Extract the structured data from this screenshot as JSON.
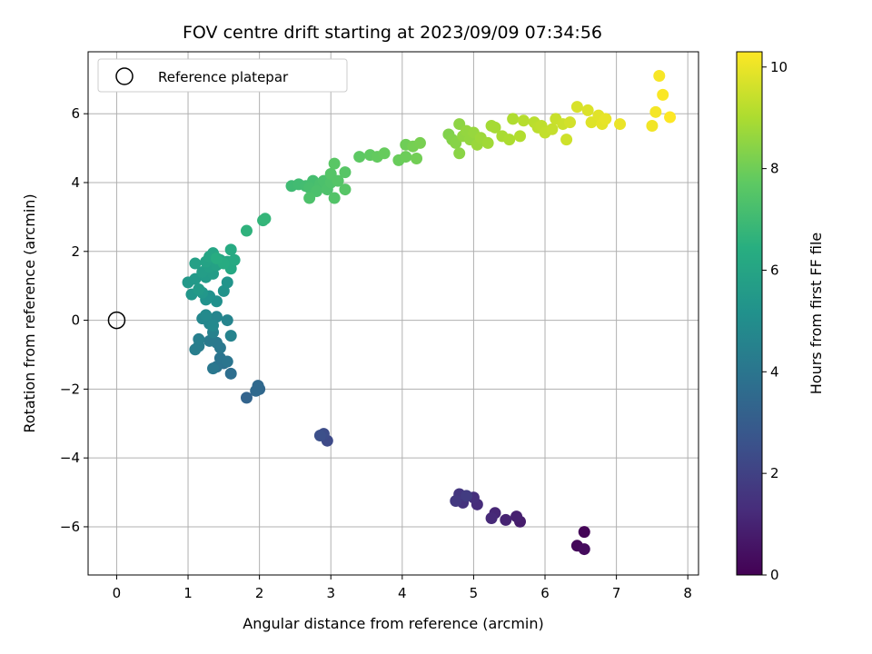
{
  "chart_data": {
    "type": "scatter",
    "title": "FOV centre drift starting at 2023/09/09 07:34:56",
    "xlabel": "Angular distance from reference (arcmin)",
    "ylabel": "Rotation from reference (arcmin)",
    "xlim": [
      -0.4,
      8.15
    ],
    "ylim": [
      -7.4,
      7.8
    ],
    "xticks": [
      0,
      1,
      2,
      3,
      4,
      5,
      6,
      7,
      8
    ],
    "yticks": [
      -6,
      -4,
      -2,
      0,
      2,
      4,
      6
    ],
    "grid": true,
    "legend": {
      "location": "upper-left",
      "label": "Reference platepar"
    },
    "reference_point": {
      "x": 0,
      "y": 0
    },
    "colorbar": {
      "label": "Hours from first FF file",
      "range": [
        0,
        10.3
      ],
      "ticks": [
        0,
        2,
        4,
        6,
        8,
        10
      ],
      "colormap": [
        "#440154",
        "#472d7b",
        "#3b528b",
        "#2c728e",
        "#21918c",
        "#28ae80",
        "#5ec962",
        "#addc30",
        "#fde725"
      ]
    },
    "series": [
      {
        "x_label": "angular distance",
        "y_label": "rotation",
        "c_label": "hours",
        "points": [
          [
            6.55,
            -6.15,
            0.1
          ],
          [
            6.45,
            -6.55,
            0.2
          ],
          [
            6.55,
            -6.65,
            0.3
          ],
          [
            5.65,
            -5.85,
            0.8
          ],
          [
            5.6,
            -5.7,
            0.9
          ],
          [
            5.45,
            -5.8,
            1.0
          ],
          [
            5.3,
            -5.6,
            1.1
          ],
          [
            5.25,
            -5.75,
            1.2
          ],
          [
            5.05,
            -5.35,
            1.3
          ],
          [
            5.0,
            -5.15,
            1.4
          ],
          [
            4.85,
            -5.3,
            1.5
          ],
          [
            4.8,
            -5.05,
            1.6
          ],
          [
            4.75,
            -5.25,
            1.7
          ],
          [
            4.9,
            -5.1,
            1.8
          ],
          [
            2.95,
            -3.5,
            2.3
          ],
          [
            2.9,
            -3.3,
            2.4
          ],
          [
            2.85,
            -3.35,
            2.5
          ],
          [
            1.82,
            -2.25,
            3.3
          ],
          [
            2.0,
            -2.0,
            3.4
          ],
          [
            1.98,
            -1.9,
            3.5
          ],
          [
            1.95,
            -2.05,
            3.5
          ],
          [
            1.6,
            -1.55,
            3.7
          ],
          [
            1.5,
            -1.25,
            3.8
          ],
          [
            1.4,
            -1.35,
            3.9
          ],
          [
            1.45,
            -1.1,
            3.95
          ],
          [
            1.55,
            -1.2,
            4.0
          ],
          [
            1.35,
            -1.4,
            4.05
          ],
          [
            1.45,
            -0.8,
            4.1
          ],
          [
            1.4,
            -0.65,
            4.15
          ],
          [
            1.3,
            -0.6,
            4.2
          ],
          [
            1.15,
            -0.75,
            4.3
          ],
          [
            1.1,
            -0.85,
            4.35
          ],
          [
            1.15,
            -0.55,
            4.4
          ],
          [
            1.35,
            -0.35,
            4.5
          ],
          [
            1.6,
            -0.45,
            4.55
          ],
          [
            1.55,
            0.0,
            4.6
          ],
          [
            1.4,
            0.1,
            4.65
          ],
          [
            1.3,
            -0.1,
            4.7
          ],
          [
            1.2,
            0.05,
            4.75
          ],
          [
            1.35,
            -0.15,
            4.8
          ],
          [
            1.25,
            0.15,
            4.85
          ],
          [
            1.4,
            0.55,
            5.1
          ],
          [
            1.3,
            0.7,
            5.15
          ],
          [
            1.25,
            0.6,
            5.2
          ],
          [
            1.5,
            0.85,
            5.25
          ],
          [
            1.55,
            1.1,
            5.3
          ],
          [
            1.05,
            0.75,
            5.35
          ],
          [
            1.2,
            0.8,
            5.4
          ],
          [
            1.0,
            1.1,
            5.45
          ],
          [
            1.1,
            1.2,
            5.5
          ],
          [
            1.15,
            0.9,
            5.55
          ],
          [
            1.25,
            1.25,
            5.6
          ],
          [
            1.35,
            1.35,
            5.65
          ],
          [
            1.2,
            1.4,
            5.7
          ],
          [
            1.3,
            1.55,
            5.75
          ],
          [
            1.1,
            1.65,
            5.8
          ],
          [
            1.4,
            1.6,
            5.85
          ],
          [
            1.25,
            1.7,
            5.9
          ],
          [
            1.45,
            1.75,
            5.95
          ],
          [
            1.3,
            1.85,
            6.0
          ],
          [
            1.35,
            1.95,
            6.05
          ],
          [
            1.55,
            1.7,
            6.1
          ],
          [
            1.6,
            1.5,
            6.15
          ],
          [
            1.65,
            1.75,
            6.2
          ],
          [
            1.6,
            2.05,
            6.25
          ],
          [
            1.5,
            1.65,
            6.3
          ],
          [
            1.4,
            1.8,
            6.35
          ],
          [
            1.82,
            2.6,
            6.6
          ],
          [
            2.05,
            2.9,
            6.7
          ],
          [
            2.08,
            2.95,
            6.75
          ],
          [
            2.45,
            3.9,
            7.0
          ],
          [
            2.55,
            3.95,
            7.05
          ],
          [
            2.65,
            3.9,
            7.1
          ],
          [
            2.75,
            4.05,
            7.15
          ],
          [
            2.7,
            3.85,
            7.2
          ],
          [
            2.85,
            3.95,
            7.25
          ],
          [
            2.9,
            4.05,
            7.3
          ],
          [
            2.8,
            3.75,
            7.3
          ],
          [
            2.7,
            3.55,
            7.35
          ],
          [
            2.95,
            3.8,
            7.35
          ],
          [
            3.0,
            4.0,
            7.4
          ],
          [
            3.05,
            3.55,
            7.45
          ],
          [
            3.0,
            4.25,
            7.5
          ],
          [
            3.1,
            4.05,
            7.5
          ],
          [
            3.2,
            3.8,
            7.55
          ],
          [
            3.2,
            4.3,
            7.55
          ],
          [
            3.05,
            4.55,
            7.6
          ],
          [
            3.4,
            4.75,
            7.7
          ],
          [
            3.55,
            4.8,
            7.75
          ],
          [
            3.65,
            4.75,
            7.8
          ],
          [
            3.75,
            4.85,
            7.85
          ],
          [
            3.95,
            4.65,
            7.9
          ],
          [
            4.05,
            4.75,
            7.95
          ],
          [
            4.05,
            5.1,
            8.0
          ],
          [
            4.2,
            4.7,
            8.05
          ],
          [
            4.15,
            5.05,
            8.1
          ],
          [
            4.25,
            5.15,
            8.15
          ],
          [
            4.65,
            5.4,
            8.3
          ],
          [
            4.7,
            5.25,
            8.35
          ],
          [
            4.75,
            5.15,
            8.4
          ],
          [
            4.8,
            4.85,
            8.45
          ],
          [
            4.8,
            5.7,
            8.5
          ],
          [
            4.85,
            5.35,
            8.55
          ],
          [
            4.9,
            5.5,
            8.6
          ],
          [
            4.95,
            5.25,
            8.6
          ],
          [
            5.0,
            5.45,
            8.65
          ],
          [
            5.05,
            5.1,
            8.7
          ],
          [
            5.1,
            5.3,
            8.75
          ],
          [
            5.2,
            5.15,
            8.8
          ],
          [
            5.25,
            5.65,
            8.85
          ],
          [
            5.3,
            5.6,
            8.9
          ],
          [
            5.4,
            5.35,
            8.95
          ],
          [
            5.5,
            5.25,
            9.0
          ],
          [
            5.55,
            5.85,
            9.05
          ],
          [
            5.65,
            5.35,
            9.1
          ],
          [
            5.7,
            5.8,
            9.15
          ],
          [
            5.85,
            5.75,
            9.2
          ],
          [
            5.9,
            5.6,
            9.25
          ],
          [
            5.95,
            5.65,
            9.3
          ],
          [
            6.0,
            5.45,
            9.35
          ],
          [
            6.1,
            5.55,
            9.4
          ],
          [
            6.15,
            5.85,
            9.45
          ],
          [
            6.25,
            5.7,
            9.5
          ],
          [
            6.3,
            5.25,
            9.55
          ],
          [
            6.35,
            5.75,
            9.6
          ],
          [
            6.45,
            6.2,
            9.7
          ],
          [
            6.6,
            6.1,
            9.75
          ],
          [
            6.65,
            5.75,
            9.8
          ],
          [
            6.75,
            5.95,
            9.85
          ],
          [
            6.8,
            5.7,
            9.9
          ],
          [
            6.85,
            5.85,
            9.95
          ],
          [
            7.05,
            5.7,
            10.0
          ],
          [
            7.5,
            5.65,
            10.1
          ],
          [
            7.55,
            6.05,
            10.15
          ],
          [
            7.6,
            7.1,
            10.2
          ],
          [
            7.65,
            6.55,
            10.25
          ],
          [
            7.75,
            5.9,
            10.3
          ]
        ]
      }
    ]
  }
}
